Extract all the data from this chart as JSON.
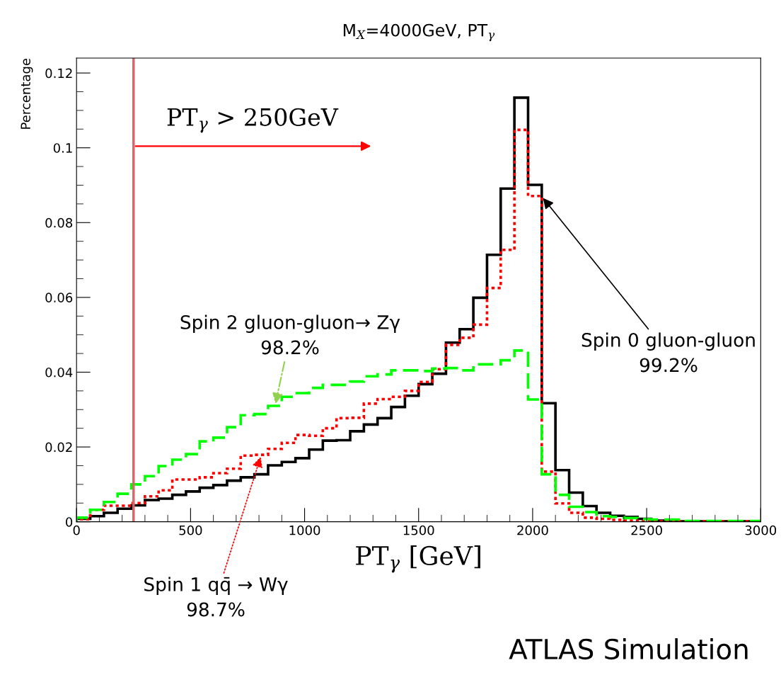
{
  "chart_data": {
    "type": "histogram",
    "title": "M$_{X}$=4000GeV, PT$_{γ}$",
    "xlabel": "PT$_{γ}$ [GeV]",
    "ylabel": "Percentage",
    "bins": [
      0,
      60,
      120,
      180,
      240,
      300,
      360,
      420,
      480,
      540,
      600,
      660,
      720,
      780,
      840,
      900,
      960,
      1020,
      1080,
      1140,
      1200,
      1260,
      1320,
      1380,
      1440,
      1500,
      1560,
      1620,
      1680,
      1740,
      1800,
      1860,
      1920,
      1980,
      2040,
      2100,
      2160,
      2220,
      2280,
      2340,
      2400,
      2460,
      2520,
      2580,
      2640,
      2700,
      2760,
      2820,
      2880,
      2940,
      3000
    ],
    "series": [
      {
        "color": "#000000",
        "line_style": "solid",
        "values": [
          0.0008,
          0.0015,
          0.0024,
          0.0035,
          0.0044,
          0.0058,
          0.0062,
          0.0072,
          0.0081,
          0.0091,
          0.0098,
          0.011,
          0.0119,
          0.0127,
          0.0151,
          0.016,
          0.017,
          0.0193,
          0.0217,
          0.0218,
          0.0242,
          0.026,
          0.0277,
          0.0307,
          0.0337,
          0.0368,
          0.0396,
          0.0479,
          0.0515,
          0.0599,
          0.0714,
          0.0891,
          0.1134,
          0.0901,
          0.0317,
          0.0138,
          0.0078,
          0.0042,
          0.0024,
          0.0016,
          0.0013,
          0.0008,
          0.0003,
          0.0002,
          0.0001,
          0.0001,
          0.0001,
          0.0001,
          0.0001,
          0.0001
        ]
      },
      {
        "color": "#ff0000",
        "line_style": "dotted",
        "values": [
          0.0007,
          0.0032,
          0.0043,
          0.0043,
          0.005,
          0.0068,
          0.0084,
          0.0113,
          0.0113,
          0.0119,
          0.013,
          0.0142,
          0.0177,
          0.0179,
          0.0195,
          0.0211,
          0.0232,
          0.023,
          0.025,
          0.0277,
          0.0278,
          0.0316,
          0.0328,
          0.0334,
          0.035,
          0.0374,
          0.0408,
          0.0473,
          0.0492,
          0.0527,
          0.0625,
          0.0727,
          0.1048,
          0.0871,
          0.0134,
          0.0049,
          0.0024,
          0.0011,
          0.0008,
          0.0005,
          0.0003,
          0.0002,
          0.0001,
          0.0001,
          0.0001,
          0.0001,
          0.0001,
          0.0001,
          0.0001,
          0.0001
        ]
      },
      {
        "color": "#00ff00",
        "line_style": "dashed",
        "values": [
          0.0011,
          0.0032,
          0.0053,
          0.0075,
          0.01,
          0.0122,
          0.0149,
          0.0166,
          0.0181,
          0.0215,
          0.0225,
          0.0253,
          0.0285,
          0.0288,
          0.031,
          0.0334,
          0.0344,
          0.0358,
          0.0366,
          0.0366,
          0.0375,
          0.0389,
          0.0394,
          0.0405,
          0.0405,
          0.0403,
          0.041,
          0.0411,
          0.0405,
          0.0421,
          0.0421,
          0.0432,
          0.0458,
          0.0327,
          0.0127,
          0.0072,
          0.004,
          0.0026,
          0.0015,
          0.0013,
          0.001,
          0.0007,
          0.0006,
          0.0006,
          0.0002,
          0.0002,
          0.0002,
          0.0002,
          0.0002,
          0.0002
        ]
      }
    ],
    "xlim": [
      0,
      3000
    ],
    "xticks": [
      0,
      500,
      1000,
      1500,
      2000,
      2500,
      3000
    ],
    "ylim": [
      0,
      0.124
    ],
    "yticks": [
      0,
      0.02,
      0.04,
      0.06,
      0.08,
      0.1,
      0.12
    ],
    "ref_lines": [
      {
        "axis": "x",
        "value": 250,
        "label": "PT$_{γ}$ > 250GeV",
        "color": "#d9666b"
      }
    ],
    "annotations": [
      {
        "text": "Spin 2 gluon-gluon→ Zγ\n98.2%",
        "x": 870,
        "y": 0.031
      },
      {
        "text": "Spin 0 gluon-gluon\n99.2%",
        "x": 2040,
        "y": 0.087
      },
      {
        "text": "Spin 1 qq̄ → Wγ\n98.7%",
        "x": 810,
        "y": 0.0179
      },
      "ATLAS Simulation"
    ]
  }
}
